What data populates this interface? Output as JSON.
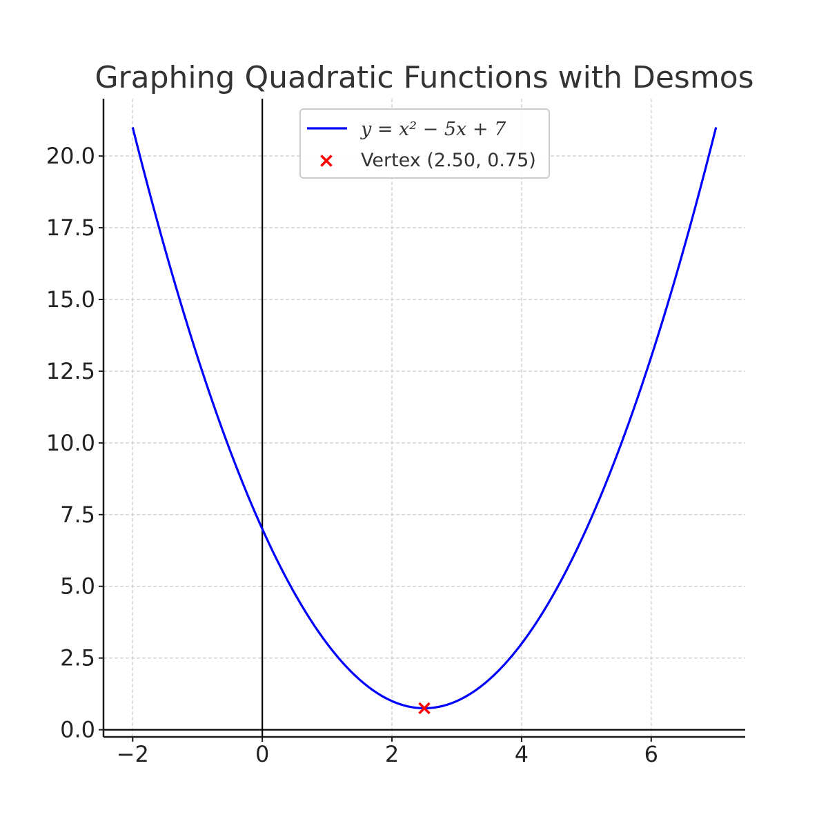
{
  "chart_data": {
    "type": "line",
    "title": "Graphing Quadratic Functions with Desmos",
    "xlabel": "",
    "ylabel": "",
    "xlim": [
      -2.45,
      7.45
    ],
    "ylim": [
      -0.25,
      22.0
    ],
    "x_ticks": [
      -2,
      0,
      2,
      4,
      6
    ],
    "x_tick_labels": [
      "−2",
      "0",
      "2",
      "4",
      "6"
    ],
    "y_ticks": [
      0,
      2.5,
      5,
      7.5,
      10,
      12.5,
      15,
      17.5,
      20
    ],
    "y_tick_labels": [
      "0.0",
      "2.5",
      "5.0",
      "7.5",
      "10.0",
      "12.5",
      "15.0",
      "17.5",
      "20.0"
    ],
    "grid": true,
    "legend_position": "top-center",
    "series": [
      {
        "name": "y = x² − 5x + 7",
        "kind": "line",
        "color": "#0000ff",
        "function": {
          "a": 1,
          "b": -5,
          "c": 7
        },
        "x_range": [
          -2,
          7
        ],
        "sample_points": [
          {
            "x": -2,
            "y": 21
          },
          {
            "x": -1,
            "y": 13
          },
          {
            "x": 0,
            "y": 7
          },
          {
            "x": 1,
            "y": 3
          },
          {
            "x": 2,
            "y": 1
          },
          {
            "x": 2.5,
            "y": 0.75
          },
          {
            "x": 3,
            "y": 1
          },
          {
            "x": 4,
            "y": 3
          },
          {
            "x": 5,
            "y": 7
          },
          {
            "x": 6,
            "y": 13
          },
          {
            "x": 7,
            "y": 21
          }
        ]
      },
      {
        "name": "Vertex (2.50, 0.75)",
        "kind": "scatter",
        "marker": "x",
        "color": "#ff0000",
        "points": [
          {
            "x": 2.5,
            "y": 0.75
          }
        ]
      }
    ],
    "reference_lines": {
      "x_axis_at_y": 0,
      "y_axis_at_x": 0
    }
  }
}
